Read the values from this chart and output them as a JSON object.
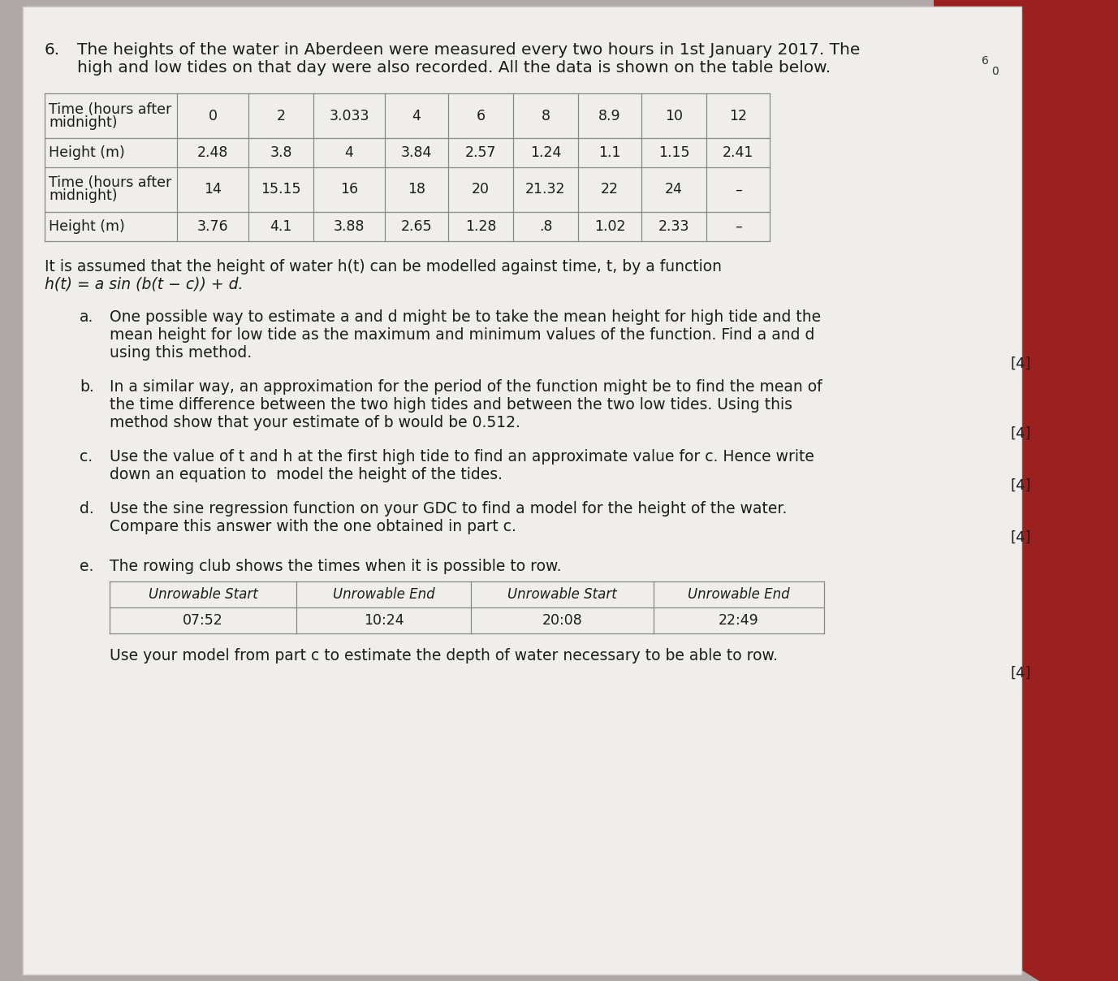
{
  "question_number": "6.",
  "intro_line1": "The heights of the water in Aberdeen were measured every two hours in 1st January 2017. The",
  "intro_line2": "high and low tides on that day were also recorded. All the data is shown on the table below.",
  "table1_row0": [
    "Time (hours after\nmidnight)",
    "0",
    "2",
    "3.033",
    "4",
    "6",
    "8",
    "8.9",
    "10",
    "12"
  ],
  "table1_row1": [
    "Height (m)",
    "2.48",
    "3.8",
    "4",
    "3.84",
    "2.57",
    "1.24",
    "1.1",
    "1.15",
    "2.41"
  ],
  "table1_row2": [
    "Time (hours after\nmidnight)",
    "14",
    "15.15",
    "16",
    "18",
    "20",
    "21.32",
    "22",
    "24",
    "–"
  ],
  "table1_row3": [
    "Height (m)",
    "3.76",
    "4.1",
    "3.88",
    "2.65",
    "1.28",
    ".8",
    "1.02",
    "2.33",
    "–"
  ],
  "formula_line1": "It is assumed that the height of water h(t) can be modelled against time, t, by a function",
  "formula_line2": "h(t) = a sin (b(t − c)) + d.",
  "part_a_letter": "a.",
  "part_a_lines": [
    "One possible way to estimate a and d might be to take the mean height for high tide and the",
    "mean height for low tide as the maximum and minimum values of the function. Find a and d",
    "using this method."
  ],
  "part_a_marks": "[4]",
  "part_b_letter": "b.",
  "part_b_lines": [
    "In a similar way, an approximation for the period of the function might be to find the mean of",
    "the time difference between the two high tides and between the two low tides. Using this",
    "method show that your estimate of b would be 0.512."
  ],
  "part_b_marks": "[4]",
  "part_c_letter": "c.",
  "part_c_lines": [
    "Use the value of t and h at the first high tide to find an approximate value for c. Hence write",
    "down an equation to  model the height of the tides."
  ],
  "part_c_marks": "[4]",
  "part_d_letter": "d.",
  "part_d_lines": [
    "Use the sine regression function on your GDC to find a model for the height of the water.",
    "Compare this answer with the one obtained in part c."
  ],
  "part_d_marks": "[4]",
  "part_e_letter": "e.",
  "part_e_intro": "The rowing club shows the times when it is possible to row.",
  "part_e_headers": [
    "Unrowable Start",
    "Unrowable End",
    "Unrowable Start",
    "Unrowable End"
  ],
  "part_e_data": [
    "07:52",
    "10:24",
    "20:08",
    "22:49"
  ],
  "part_e_text": "Use your model from part c to estimate the depth of water necessary to be able to row.",
  "part_e_marks": "[4]",
  "bg_color": "#b0a8a8",
  "paper_color": "#f0eeeb",
  "text_color": "#1c1c1c",
  "table_line_color": "#888888",
  "red_fabric_color": "#8b1a1a"
}
